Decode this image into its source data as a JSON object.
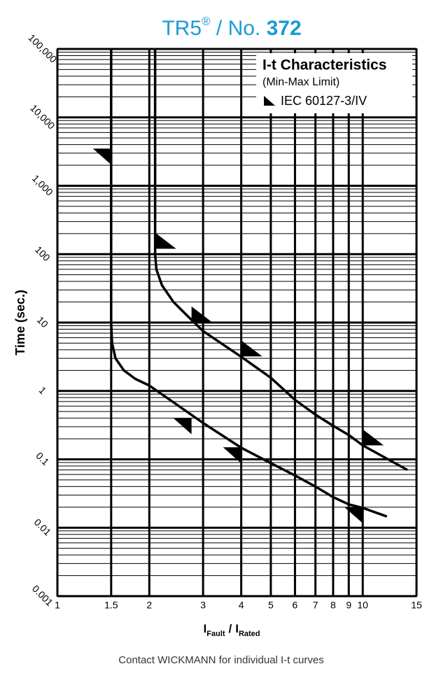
{
  "chart_data": {
    "type": "line",
    "title": {
      "product": "TR5",
      "mark": "®",
      "sep": " / No. ",
      "number": "372"
    },
    "xlabel": {
      "symbol": "I",
      "sub1": "Fault",
      "sep": "/",
      "sub2": "Rated"
    },
    "ylabel": "Time (sec.)",
    "footer": "Contact WICKMANN for individual I-t curves",
    "legend": {
      "title": "I-t Characteristics",
      "subtitle": "(Min-Max Limit)",
      "position": "upper right"
    },
    "xscale": "log",
    "yscale": "log",
    "grid": true,
    "minor_grid": true,
    "xlim": [
      1,
      15
    ],
    "xticks": [
      1,
      1.5,
      2,
      3,
      4,
      5,
      6,
      7,
      8,
      9,
      10,
      15
    ],
    "ylim": [
      0.001,
      100000
    ],
    "yticks": [
      {
        "value": 100000,
        "label": "100,000"
      },
      {
        "value": 10000,
        "label": "10,000"
      },
      {
        "value": 1000,
        "label": "1,000"
      },
      100,
      10,
      1,
      0.1,
      0.01,
      0.001
    ],
    "series": [
      {
        "color": "#000000",
        "x": [
          1.5,
          1.5,
          1.51,
          1.55,
          1.65,
          1.8,
          2,
          2.5,
          3,
          4,
          5,
          6,
          7,
          8,
          9,
          10,
          12
        ],
        "values": [
          100000,
          10,
          5,
          3,
          2,
          1.5,
          1.2,
          0.6,
          0.34,
          0.148,
          0.088,
          0.058,
          0.04,
          0.028,
          0.022,
          0.0195,
          0.0146
        ]
      },
      {
        "color": "#000000",
        "x": [
          2.09,
          2.09,
          2.11,
          2.2,
          2.4,
          2.6,
          3,
          4,
          5,
          6,
          7,
          8,
          9,
          10,
          14
        ],
        "values": [
          100000,
          100,
          60,
          35,
          20,
          14,
          7.5,
          3.16,
          1.56,
          0.74,
          0.45,
          0.31,
          0.227,
          0.16,
          0.07
        ]
      }
    ],
    "markers": {
      "name": "IEC 60127-3/IV",
      "color": "#000000",
      "x": [
        1.5,
        2.09,
        2.75,
        4,
        10,
        2.75,
        4,
        10
      ],
      "values": [
        3500,
        120,
        10,
        3.2,
        0.16,
        0.4,
        0.15,
        0.02
      ],
      "shape": [
        "ne",
        "sw",
        "sw",
        "sw",
        "sw",
        "ne",
        "ne",
        "ne"
      ]
    }
  }
}
